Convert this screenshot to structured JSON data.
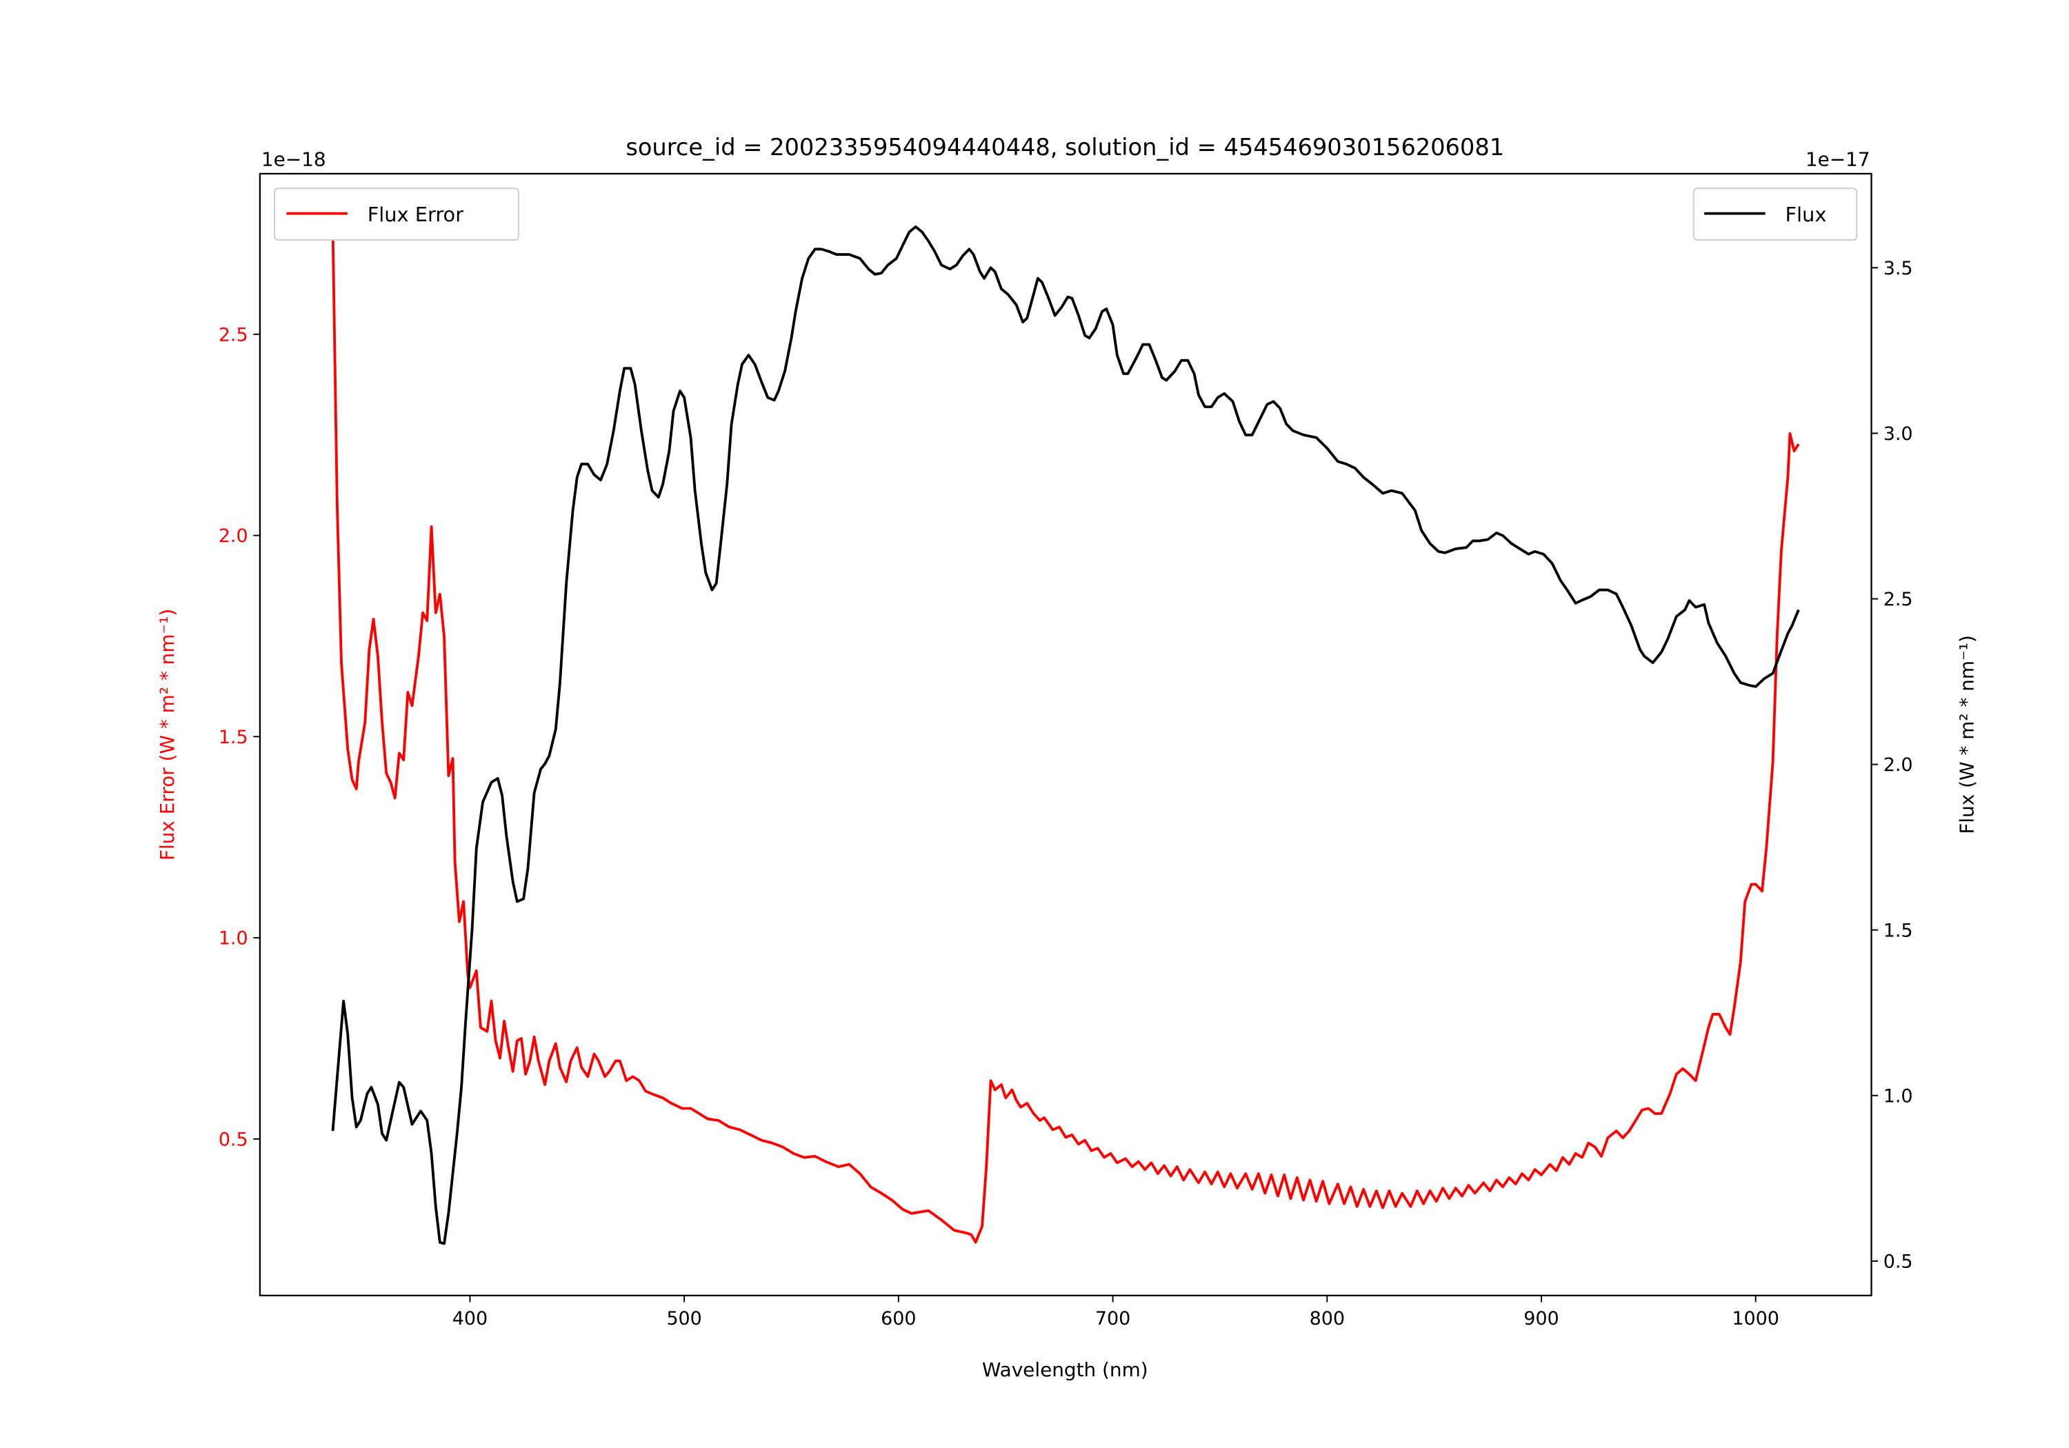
{
  "chart_data": {
    "type": "line",
    "title": "source_id = 2002335954094440448, solution_id = 4545469030156206081",
    "xlabel": "Wavelength (nm)",
    "ylabel_left": "Flux Error (W * m² * nm⁻¹)",
    "ylabel_right": "Flux (W * m² * nm⁻¹)",
    "offset_left": "1e−18",
    "offset_right": "1e−17",
    "xlim": [
      302,
      1054
    ],
    "ylim_left": [
      0.111,
      2.899
    ],
    "ylim_right": [
      0.396,
      3.784
    ],
    "xticks": [
      400,
      500,
      600,
      700,
      800,
      900,
      1000
    ],
    "yticks_left": [
      0.5,
      1.0,
      1.5,
      2.0,
      2.5
    ],
    "yticks_right": [
      0.5,
      1.0,
      1.5,
      2.0,
      2.5,
      3.0,
      3.5
    ],
    "grid": false,
    "colors": {
      "flux": "#000000",
      "flux_error": "#ff0000"
    },
    "series": [
      {
        "name": "Flux Error",
        "axis": "left",
        "legend": "top-left",
        "x": [
          336,
          338,
          340,
          343,
          345,
          347,
          348,
          351,
          353,
          355,
          357,
          359,
          361,
          363,
          365,
          367,
          369,
          371,
          373,
          376,
          378,
          380,
          382,
          384,
          386,
          388,
          390,
          392,
          393,
          395,
          397,
          399,
          400,
          403,
          405,
          408,
          410,
          412,
          414,
          416,
          418,
          420,
          422,
          424,
          426,
          428,
          430,
          432,
          435,
          437,
          440,
          442,
          445,
          447,
          450,
          452,
          455,
          458,
          460,
          463,
          465,
          468,
          470,
          473,
          476,
          479,
          482,
          485,
          490,
          494,
          499,
          503,
          507,
          511,
          516,
          521,
          526,
          531,
          536,
          541,
          546,
          551,
          556,
          561,
          566,
          572,
          577,
          582,
          587,
          592,
          597,
          602,
          606,
          614,
          620,
          626,
          632,
          634,
          636,
          639,
          641,
          643,
          645,
          648,
          650,
          653,
          655,
          657,
          660,
          663,
          666,
          668,
          672,
          675,
          678,
          681,
          684,
          687,
          690,
          693,
          696,
          699,
          702,
          706,
          709,
          712,
          715,
          718,
          721,
          724,
          727,
          730,
          733,
          736,
          740,
          743,
          746,
          749,
          752,
          755,
          758,
          762,
          765,
          768,
          771,
          774,
          777,
          780,
          783,
          786,
          789,
          792,
          795,
          798,
          801,
          805,
          808,
          811,
          814,
          817,
          820,
          823,
          826,
          829,
          832,
          835,
          839,
          842,
          845,
          848,
          851,
          854,
          857,
          860,
          863,
          866,
          869,
          873,
          876,
          879,
          882,
          885,
          888,
          891,
          894,
          897,
          900,
          904,
          907,
          910,
          913,
          916,
          919,
          922,
          925,
          928,
          931,
          935,
          938,
          941,
          944,
          947,
          950,
          953,
          956,
          960,
          963,
          966,
          969,
          972,
          975,
          978,
          980,
          983,
          986,
          988,
          990,
          993,
          995,
          998,
          1000,
          1003,
          1005,
          1008,
          1010,
          1012,
          1015,
          1016,
          1018,
          1020
        ],
        "y": [
          2.77,
          2.078,
          1.683,
          1.469,
          1.393,
          1.37,
          1.436,
          1.535,
          1.716,
          1.792,
          1.7,
          1.535,
          1.409,
          1.386,
          1.347,
          1.459,
          1.442,
          1.61,
          1.577,
          1.7,
          1.808,
          1.788,
          2.022,
          1.808,
          1.854,
          1.749,
          1.403,
          1.446,
          1.189,
          1.04,
          1.09,
          0.909,
          0.876,
          0.918,
          0.777,
          0.767,
          0.843,
          0.744,
          0.701,
          0.793,
          0.727,
          0.668,
          0.744,
          0.75,
          0.661,
          0.694,
          0.754,
          0.694,
          0.635,
          0.694,
          0.737,
          0.678,
          0.642,
          0.694,
          0.727,
          0.678,
          0.655,
          0.711,
          0.694,
          0.655,
          0.668,
          0.694,
          0.694,
          0.645,
          0.655,
          0.645,
          0.619,
          0.612,
          0.602,
          0.589,
          0.576,
          0.576,
          0.563,
          0.55,
          0.546,
          0.53,
          0.523,
          0.51,
          0.497,
          0.49,
          0.48,
          0.464,
          0.454,
          0.457,
          0.444,
          0.431,
          0.437,
          0.414,
          0.381,
          0.365,
          0.348,
          0.325,
          0.315,
          0.322,
          0.299,
          0.273,
          0.266,
          0.262,
          0.243,
          0.283,
          0.431,
          0.645,
          0.622,
          0.635,
          0.602,
          0.622,
          0.596,
          0.579,
          0.589,
          0.563,
          0.546,
          0.553,
          0.523,
          0.53,
          0.504,
          0.51,
          0.487,
          0.497,
          0.471,
          0.477,
          0.454,
          0.464,
          0.441,
          0.451,
          0.431,
          0.444,
          0.424,
          0.441,
          0.414,
          0.434,
          0.408,
          0.431,
          0.398,
          0.424,
          0.391,
          0.418,
          0.388,
          0.418,
          0.381,
          0.414,
          0.378,
          0.414,
          0.375,
          0.414,
          0.365,
          0.411,
          0.358,
          0.411,
          0.352,
          0.404,
          0.348,
          0.398,
          0.345,
          0.395,
          0.339,
          0.388,
          0.339,
          0.381,
          0.332,
          0.375,
          0.332,
          0.371,
          0.329,
          0.371,
          0.332,
          0.365,
          0.332,
          0.371,
          0.339,
          0.371,
          0.345,
          0.378,
          0.352,
          0.378,
          0.358,
          0.385,
          0.365,
          0.391,
          0.371,
          0.398,
          0.381,
          0.404,
          0.388,
          0.414,
          0.398,
          0.424,
          0.411,
          0.437,
          0.421,
          0.454,
          0.437,
          0.464,
          0.454,
          0.49,
          0.48,
          0.457,
          0.503,
          0.52,
          0.503,
          0.52,
          0.546,
          0.572,
          0.576,
          0.563,
          0.563,
          0.612,
          0.661,
          0.675,
          0.661,
          0.645,
          0.711,
          0.777,
          0.81,
          0.81,
          0.777,
          0.76,
          0.826,
          0.941,
          1.09,
          1.133,
          1.133,
          1.116,
          1.222,
          1.436,
          1.749,
          1.963,
          2.144,
          2.253,
          2.21,
          2.227
        ]
      },
      {
        "name": "Flux",
        "axis": "right",
        "legend": "top-right",
        "x": [
          336,
          341,
          343,
          345,
          347,
          349,
          352,
          354,
          357,
          359,
          361,
          363,
          367,
          369,
          373,
          377,
          380,
          382,
          384,
          386,
          388,
          390,
          392,
          394,
          396,
          398,
          401,
          403,
          406,
          410,
          413,
          415,
          417,
          420,
          422,
          425,
          427,
          430,
          433,
          435,
          437,
          440,
          442,
          445,
          448,
          450,
          452,
          455,
          458,
          461,
          464,
          467,
          470,
          472,
          475,
          477,
          480,
          483,
          485,
          488,
          490,
          493,
          495,
          498,
          500,
          503,
          505,
          508,
          510,
          513,
          515,
          517,
          520,
          522,
          525,
          527,
          530,
          533,
          536,
          539,
          542,
          544,
          547,
          550,
          552,
          555,
          558,
          561,
          564,
          568,
          571,
          577,
          582,
          586,
          589,
          592,
          595,
          599,
          602,
          605,
          608,
          611,
          614,
          617,
          620,
          624,
          627,
          630,
          633,
          635,
          638,
          640,
          643,
          645,
          648,
          651,
          655,
          658,
          660,
          663,
          665,
          667,
          670,
          673,
          676,
          679,
          681,
          684,
          687,
          689,
          692,
          695,
          697,
          700,
          702,
          705,
          707,
          711,
          714,
          717,
          720,
          723,
          725,
          729,
          732,
          735,
          738,
          740,
          743,
          746,
          749,
          752,
          756,
          759,
          762,
          765,
          769,
          772,
          775,
          778,
          781,
          784,
          789,
          795,
          800,
          805,
          809,
          813,
          817,
          821,
          826,
          830,
          835,
          841,
          844,
          848,
          852,
          855,
          860,
          865,
          868,
          871,
          875,
          879,
          882,
          886,
          890,
          894,
          897,
          901,
          905,
          909,
          912,
          916,
          920,
          923,
          927,
          931,
          935,
          938,
          942,
          946,
          948,
          952,
          956,
          959,
          963,
          967,
          969,
          972,
          976,
          978,
          982,
          986,
          990,
          993,
          997,
          1000,
          1004,
          1008,
          1011,
          1015,
          1017,
          1020
        ],
        "y": [
          0.893,
          1.285,
          1.185,
          0.993,
          0.905,
          0.925,
          1.005,
          1.025,
          0.973,
          0.885,
          0.865,
          0.925,
          1.04,
          1.025,
          0.913,
          0.953,
          0.925,
          0.825,
          0.665,
          0.556,
          0.553,
          0.645,
          0.765,
          0.885,
          1.025,
          1.225,
          1.505,
          1.746,
          1.886,
          1.946,
          1.958,
          1.906,
          1.786,
          1.646,
          1.586,
          1.594,
          1.686,
          1.914,
          1.986,
          2.002,
          2.026,
          2.106,
          2.246,
          2.547,
          2.767,
          2.867,
          2.907,
          2.907,
          2.875,
          2.859,
          2.907,
          3.007,
          3.128,
          3.196,
          3.196,
          3.148,
          3.007,
          2.887,
          2.827,
          2.807,
          2.847,
          2.947,
          3.067,
          3.128,
          3.108,
          2.987,
          2.827,
          2.667,
          2.579,
          2.527,
          2.547,
          2.667,
          2.847,
          3.027,
          3.148,
          3.208,
          3.236,
          3.208,
          3.156,
          3.108,
          3.1,
          3.128,
          3.188,
          3.288,
          3.368,
          3.468,
          3.528,
          3.556,
          3.556,
          3.548,
          3.54,
          3.54,
          3.528,
          3.496,
          3.48,
          3.484,
          3.508,
          3.528,
          3.568,
          3.608,
          3.624,
          3.608,
          3.58,
          3.548,
          3.508,
          3.496,
          3.508,
          3.536,
          3.556,
          3.54,
          3.488,
          3.468,
          3.5,
          3.488,
          3.436,
          3.42,
          3.388,
          3.336,
          3.348,
          3.42,
          3.468,
          3.456,
          3.408,
          3.356,
          3.38,
          3.412,
          3.408,
          3.356,
          3.296,
          3.288,
          3.316,
          3.368,
          3.376,
          3.328,
          3.236,
          3.18,
          3.18,
          3.228,
          3.268,
          3.268,
          3.22,
          3.168,
          3.16,
          3.188,
          3.22,
          3.22,
          3.18,
          3.116,
          3.08,
          3.08,
          3.108,
          3.12,
          3.096,
          3.036,
          2.995,
          2.995,
          3.047,
          3.087,
          3.096,
          3.076,
          3.028,
          3.008,
          2.995,
          2.987,
          2.955,
          2.915,
          2.907,
          2.895,
          2.867,
          2.847,
          2.819,
          2.827,
          2.819,
          2.767,
          2.707,
          2.667,
          2.643,
          2.639,
          2.651,
          2.655,
          2.675,
          2.675,
          2.679,
          2.699,
          2.691,
          2.667,
          2.651,
          2.635,
          2.643,
          2.635,
          2.607,
          2.555,
          2.527,
          2.487,
          2.499,
          2.507,
          2.527,
          2.527,
          2.515,
          2.475,
          2.419,
          2.347,
          2.327,
          2.307,
          2.339,
          2.379,
          2.447,
          2.467,
          2.495,
          2.475,
          2.483,
          2.427,
          2.367,
          2.327,
          2.275,
          2.247,
          2.239,
          2.235,
          2.259,
          2.275,
          2.327,
          2.395,
          2.419,
          2.467
        ]
      }
    ]
  }
}
